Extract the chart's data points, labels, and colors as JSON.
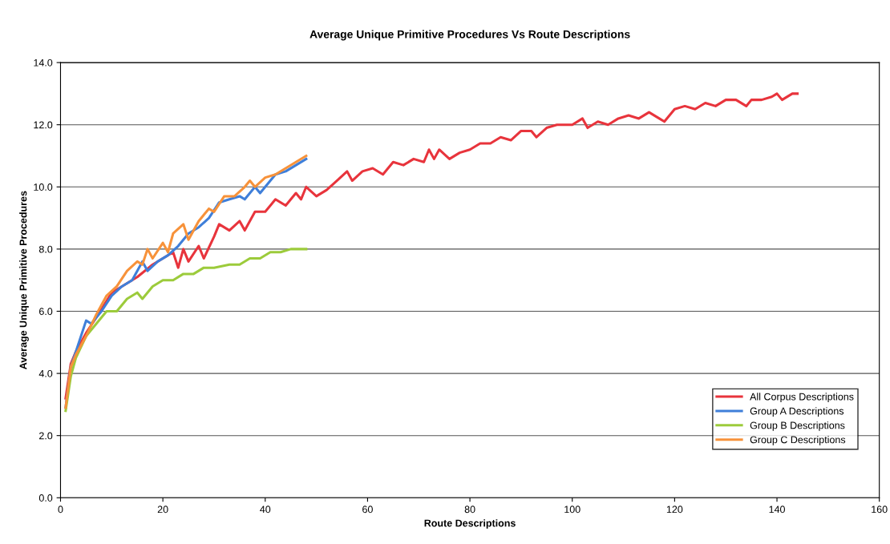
{
  "chart_data": {
    "type": "line",
    "title": "Average Unique Primitive Procedures Vs Route Descriptions",
    "xlabel": "Route Descriptions",
    "ylabel": "Average Unique Primitive Procedures",
    "xlim": [
      0,
      160
    ],
    "xticks": [
      0,
      20,
      40,
      60,
      80,
      100,
      120,
      140,
      160
    ],
    "ylim": [
      0,
      14
    ],
    "yticks": [
      {
        "value": 0,
        "label": "0.0"
      },
      {
        "value": 2,
        "label": "2.0"
      },
      {
        "value": 4,
        "label": "4.0"
      },
      {
        "value": 6,
        "label": "6.0"
      },
      {
        "value": 8,
        "label": "8.0"
      },
      {
        "value": 10,
        "label": "10.0"
      },
      {
        "value": 12,
        "label": "12.0"
      },
      {
        "value": 14,
        "label": "14.0"
      }
    ],
    "grid": "y",
    "legend": "bottom right",
    "marker": "none",
    "line_style": "solid",
    "series": [
      {
        "name": "All Corpus Descriptions",
        "color": "#e8343c",
        "x": [
          1,
          2,
          3,
          5,
          7,
          10,
          12,
          15,
          18,
          20,
          22,
          23,
          24,
          25,
          27,
          28,
          30,
          31,
          33,
          35,
          36,
          38,
          40,
          42,
          44,
          46,
          47,
          48,
          50,
          52,
          54,
          56,
          57,
          59,
          61,
          63,
          65,
          67,
          69,
          71,
          72,
          73,
          74,
          76,
          78,
          80,
          82,
          84,
          86,
          88,
          90,
          92,
          93,
          95,
          97,
          100,
          102,
          103,
          105,
          107,
          109,
          111,
          113,
          115,
          117,
          118,
          120,
          122,
          124,
          126,
          128,
          130,
          132,
          134,
          135,
          137,
          139,
          140,
          141,
          143,
          144
        ],
        "values": [
          3.2,
          4.3,
          4.7,
          5.3,
          5.8,
          6.6,
          6.8,
          7.1,
          7.5,
          7.7,
          7.9,
          7.4,
          8.0,
          7.6,
          8.1,
          7.7,
          8.4,
          8.8,
          8.6,
          8.9,
          8.6,
          9.2,
          9.2,
          9.6,
          9.4,
          9.8,
          9.6,
          10.0,
          9.7,
          9.9,
          10.2,
          10.5,
          10.2,
          10.5,
          10.6,
          10.4,
          10.8,
          10.7,
          10.9,
          10.8,
          11.2,
          10.9,
          11.2,
          10.9,
          11.1,
          11.2,
          11.4,
          11.4,
          11.6,
          11.5,
          11.8,
          11.8,
          11.6,
          11.9,
          12.0,
          12.0,
          12.2,
          11.9,
          12.1,
          12.0,
          12.2,
          12.3,
          12.2,
          12.4,
          12.2,
          12.1,
          12.5,
          12.6,
          12.5,
          12.7,
          12.6,
          12.8,
          12.8,
          12.6,
          12.8,
          12.8,
          12.9,
          13.0,
          12.8,
          13.0,
          13.0
        ]
      },
      {
        "name": "Group A Descriptions",
        "color": "#3f7fd9",
        "x": [
          1,
          2,
          3,
          5,
          6,
          8,
          10,
          12,
          14,
          16,
          17,
          19,
          21,
          23,
          25,
          27,
          29,
          31,
          33,
          35,
          36,
          38,
          39,
          41,
          42,
          44,
          46,
          48
        ],
        "values": [
          2.9,
          4.2,
          4.7,
          5.7,
          5.6,
          6.0,
          6.5,
          6.8,
          7.0,
          7.6,
          7.3,
          7.6,
          7.8,
          8.1,
          8.5,
          8.7,
          9.0,
          9.5,
          9.6,
          9.7,
          9.6,
          10.0,
          9.8,
          10.2,
          10.4,
          10.5,
          10.7,
          10.9
        ]
      },
      {
        "name": "Group B Descriptions",
        "color": "#9ccb3b",
        "x": [
          1,
          2,
          3,
          5,
          7,
          9,
          11,
          13,
          15,
          16,
          18,
          20,
          22,
          24,
          26,
          28,
          30,
          33,
          35,
          37,
          39,
          41,
          43,
          45,
          48
        ],
        "values": [
          2.8,
          3.9,
          4.5,
          5.2,
          5.6,
          6.0,
          6.0,
          6.4,
          6.6,
          6.4,
          6.8,
          7.0,
          7.0,
          7.2,
          7.2,
          7.4,
          7.4,
          7.5,
          7.5,
          7.7,
          7.7,
          7.9,
          7.9,
          8.0,
          8.0
        ]
      },
      {
        "name": "Group C Descriptions",
        "color": "#f7923a",
        "x": [
          1,
          2,
          3,
          5,
          7,
          9,
          11,
          13,
          15,
          16,
          17,
          18,
          20,
          21,
          22,
          24,
          25,
          27,
          29,
          30,
          32,
          34,
          36,
          37,
          38,
          40,
          42,
          44,
          46,
          48
        ],
        "values": [
          2.9,
          4.2,
          4.6,
          5.2,
          5.9,
          6.5,
          6.8,
          7.3,
          7.6,
          7.5,
          8.0,
          7.7,
          8.2,
          7.9,
          8.5,
          8.8,
          8.3,
          8.9,
          9.3,
          9.2,
          9.7,
          9.7,
          10.0,
          10.2,
          10.0,
          10.3,
          10.4,
          10.6,
          10.8,
          11.0
        ]
      }
    ]
  }
}
